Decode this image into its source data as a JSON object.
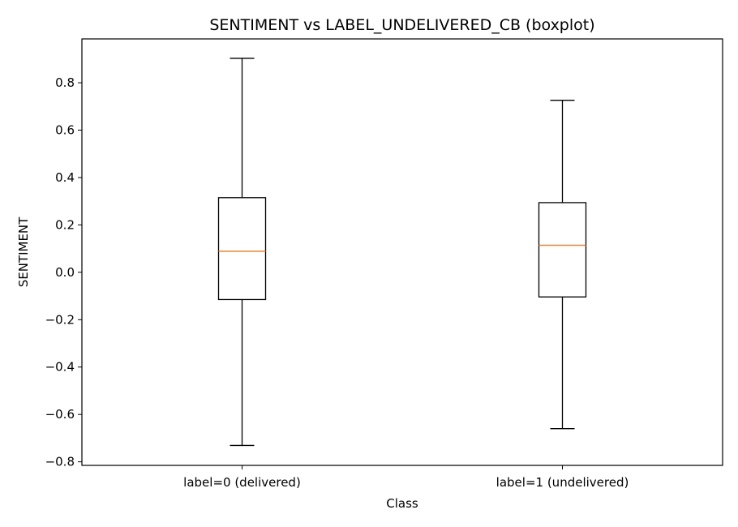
{
  "chart_data": {
    "type": "boxplot",
    "title": "SENTIMENT vs LABEL_UNDELIVERED_CB (boxplot)",
    "xlabel": "Class",
    "ylabel": "SENTIMENT",
    "categories": [
      "label=0 (delivered)",
      "label=1 (undelivered)"
    ],
    "boxes": [
      {
        "whisker_low": -0.731,
        "q1": -0.115,
        "median": 0.089,
        "q3": 0.315,
        "whisker_high": 0.903
      },
      {
        "whisker_low": -0.66,
        "q1": -0.104,
        "median": 0.114,
        "q3": 0.294,
        "whisker_high": 0.726
      }
    ],
    "ylim": [
      -0.815,
      0.985
    ],
    "yticks": [
      -0.8,
      -0.6,
      -0.4,
      -0.2,
      0.0,
      0.2,
      0.4,
      0.6,
      0.8
    ],
    "ytick_labels": [
      "−0.8",
      "−0.6",
      "−0.4",
      "−0.2",
      "0.0",
      "0.2",
      "0.4",
      "0.6",
      "0.8"
    ],
    "grid": false,
    "colors": {
      "box": "#000000",
      "median": "#ff7f0e"
    }
  }
}
